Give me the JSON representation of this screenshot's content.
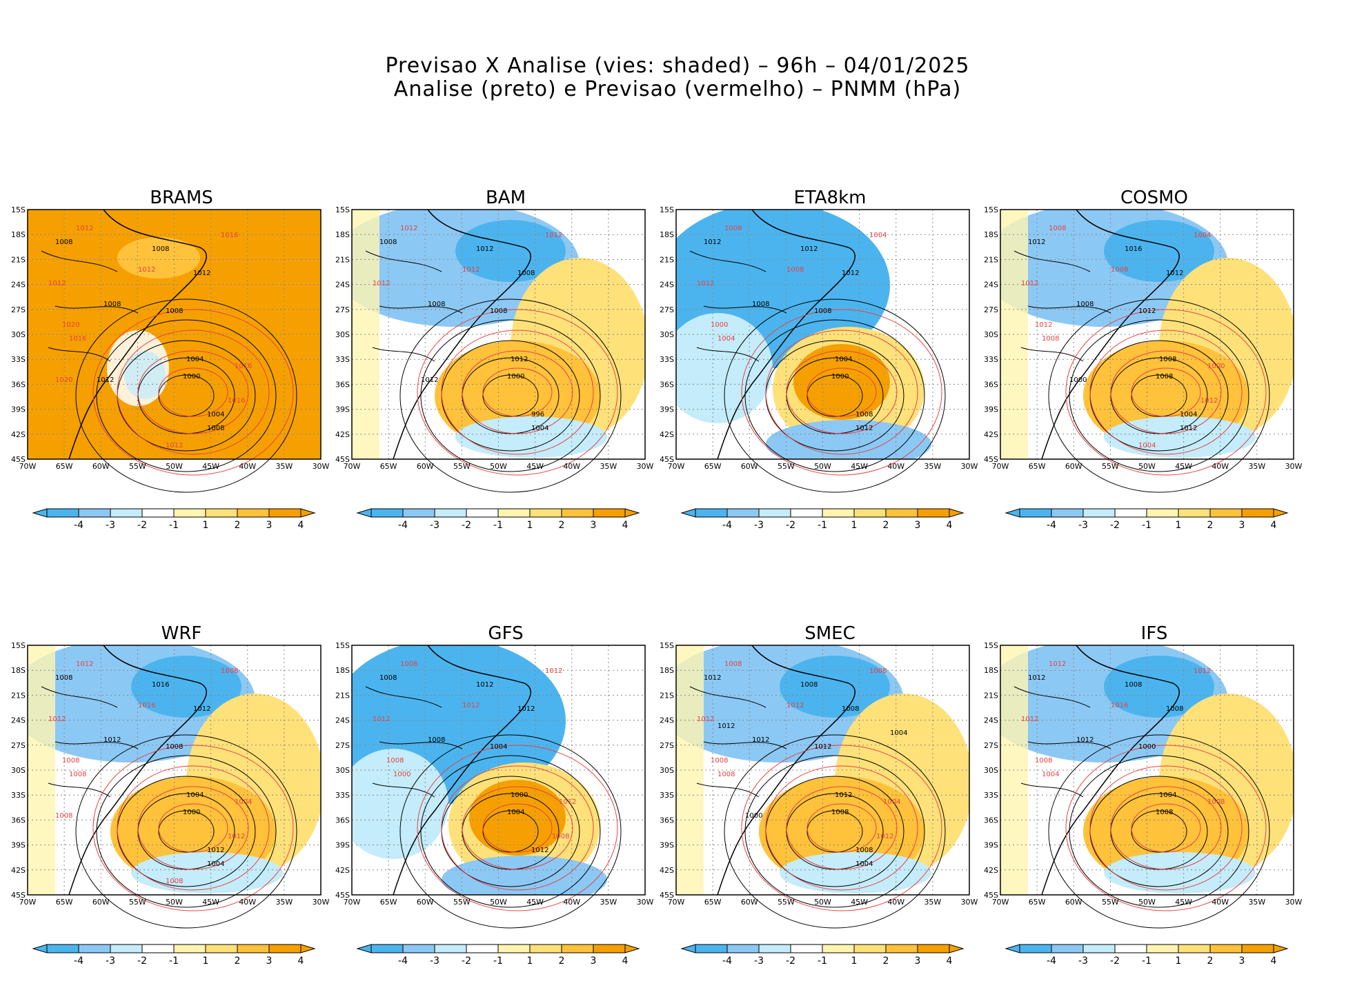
{
  "header": {
    "line1": "Previsao X Analise (vies: shaded) – 96h – 04/01/2025",
    "line2": "Analise (preto) e Previsao (vermelho) – PNMM (hPa)"
  },
  "axes": {
    "lat_labels": [
      "15S",
      "18S",
      "21S",
      "24S",
      "27S",
      "30S",
      "33S",
      "36S",
      "39S",
      "42S",
      "45S"
    ],
    "lon_labels": [
      "70W",
      "65W",
      "60W",
      "55W",
      "50W",
      "45W",
      "40W",
      "35W",
      "30W"
    ]
  },
  "colorbar": {
    "labels": [
      "-4",
      "-3",
      "-2",
      "-1",
      "1",
      "2",
      "3",
      "4"
    ],
    "colors": [
      "#4bb4ee",
      "#8cc8f4",
      "#c4ecfa",
      "#ffffff",
      "#fff5b0",
      "#ffe17a",
      "#ffc23a",
      "#f5a000"
    ]
  },
  "colors": {
    "analysis": "#000000",
    "forecast": "#e84040",
    "grid": "#888888"
  },
  "panels": [
    {
      "model": "BRAMS",
      "pattern": "warm",
      "black_labels": [
        "1008",
        "1008",
        "1012",
        "1008",
        "1008",
        "1004",
        "1000",
        "1004",
        "1008",
        "1012"
      ],
      "red_labels": [
        "1012",
        "1016",
        "1012",
        "1012",
        "1020",
        "1016",
        "1016",
        "1016",
        "1012",
        "1020"
      ]
    },
    {
      "model": "BAM",
      "pattern": "mixed",
      "black_labels": [
        "1008",
        "1012",
        "1008",
        "1008",
        "1008",
        "1012",
        "1000",
        "996",
        "1004",
        "1012"
      ],
      "red_labels": [
        "1012",
        "1012",
        "1012",
        "1012"
      ]
    },
    {
      "model": "ETA8km",
      "pattern": "cool",
      "black_labels": [
        "1012",
        "1012",
        "1012",
        "1008",
        "1008",
        "1004",
        "1000",
        "1008",
        "1012"
      ],
      "red_labels": [
        "1008",
        "1004",
        "1008",
        "1012",
        "1000",
        "1004"
      ]
    },
    {
      "model": "COSMO",
      "pattern": "mixed",
      "black_labels": [
        "1012",
        "1016",
        "1012",
        "1008",
        "1012",
        "1008",
        "1008",
        "1004",
        "1012",
        "1000"
      ],
      "red_labels": [
        "1008",
        "1004",
        "1008",
        "1012",
        "1012",
        "1008",
        "1000",
        "1012",
        "1004"
      ]
    },
    {
      "model": "WRF",
      "pattern": "mixed",
      "black_labels": [
        "1008",
        "1016",
        "1012",
        "1012",
        "1008",
        "1004",
        "1000",
        "1012",
        "1004"
      ],
      "red_labels": [
        "1012",
        "1008",
        "1016",
        "1012",
        "1008",
        "1008",
        "1004",
        "1012",
        "1008",
        "1008"
      ]
    },
    {
      "model": "GFS",
      "pattern": "cool",
      "black_labels": [
        "1008",
        "1012",
        "1012",
        "1008",
        "1004",
        "1000",
        "1004",
        "1012"
      ],
      "red_labels": [
        "1008",
        "1012",
        "1012",
        "1012",
        "1008",
        "1000",
        "1012",
        "1008"
      ]
    },
    {
      "model": "SMEC",
      "pattern": "mixed",
      "black_labels": [
        "1012",
        "1008",
        "1008",
        "1012",
        "1012",
        "1012",
        "1008",
        "1008",
        "1004",
        "1000",
        "1004",
        "1012"
      ],
      "red_labels": [
        "1008",
        "1008",
        "1012",
        "1012",
        "1008",
        "1008",
        "1004",
        "1012"
      ]
    },
    {
      "model": "IFS",
      "pattern": "mixed",
      "black_labels": [
        "1012",
        "1008",
        "1008",
        "1012",
        "1000",
        "1004",
        "1008"
      ],
      "red_labels": [
        "1012",
        "1012",
        "1016",
        "1012",
        "1008",
        "1004",
        "1008"
      ]
    }
  ]
}
